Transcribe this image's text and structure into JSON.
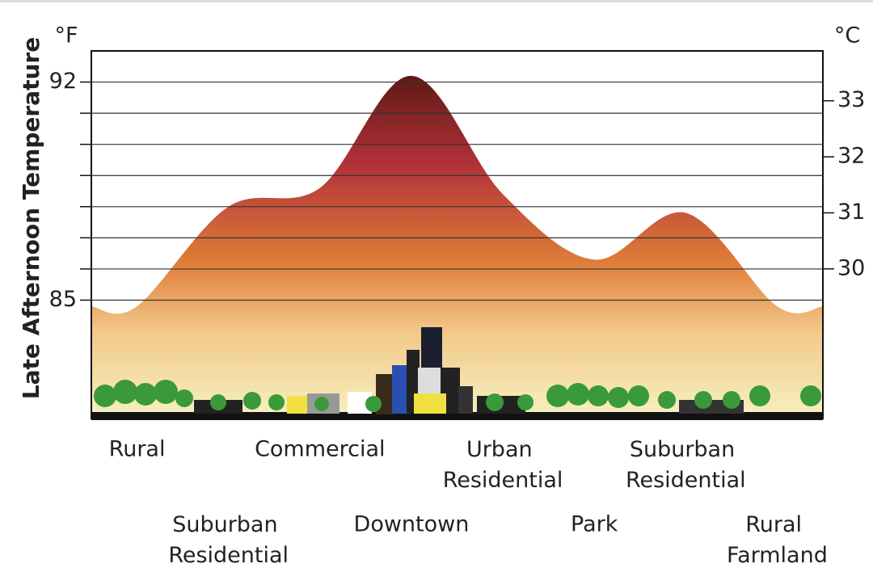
{
  "chart_data": {
    "type": "area",
    "y_label": "Late Afternoon Temperature",
    "y_unit": "°F",
    "y2_unit": "°C",
    "categories": [
      "Rural",
      "Suburban Residential",
      "Commercial",
      "Downtown",
      "Urban Residential",
      "Park",
      "Suburban Residential",
      "Rural Farmland"
    ],
    "values": [
      84.8,
      88.0,
      88.6,
      92.2,
      88.4,
      86.3,
      87.8,
      84.8
    ],
    "ylim": [
      81.2,
      93
    ],
    "yticks": [
      85,
      92
    ],
    "minor_yticks": [
      86,
      87,
      88,
      89,
      90,
      91
    ],
    "y2lim": [
      27.33,
      33.89
    ],
    "y2ticks": [
      30,
      31,
      32,
      33
    ],
    "grid": true
  }
}
